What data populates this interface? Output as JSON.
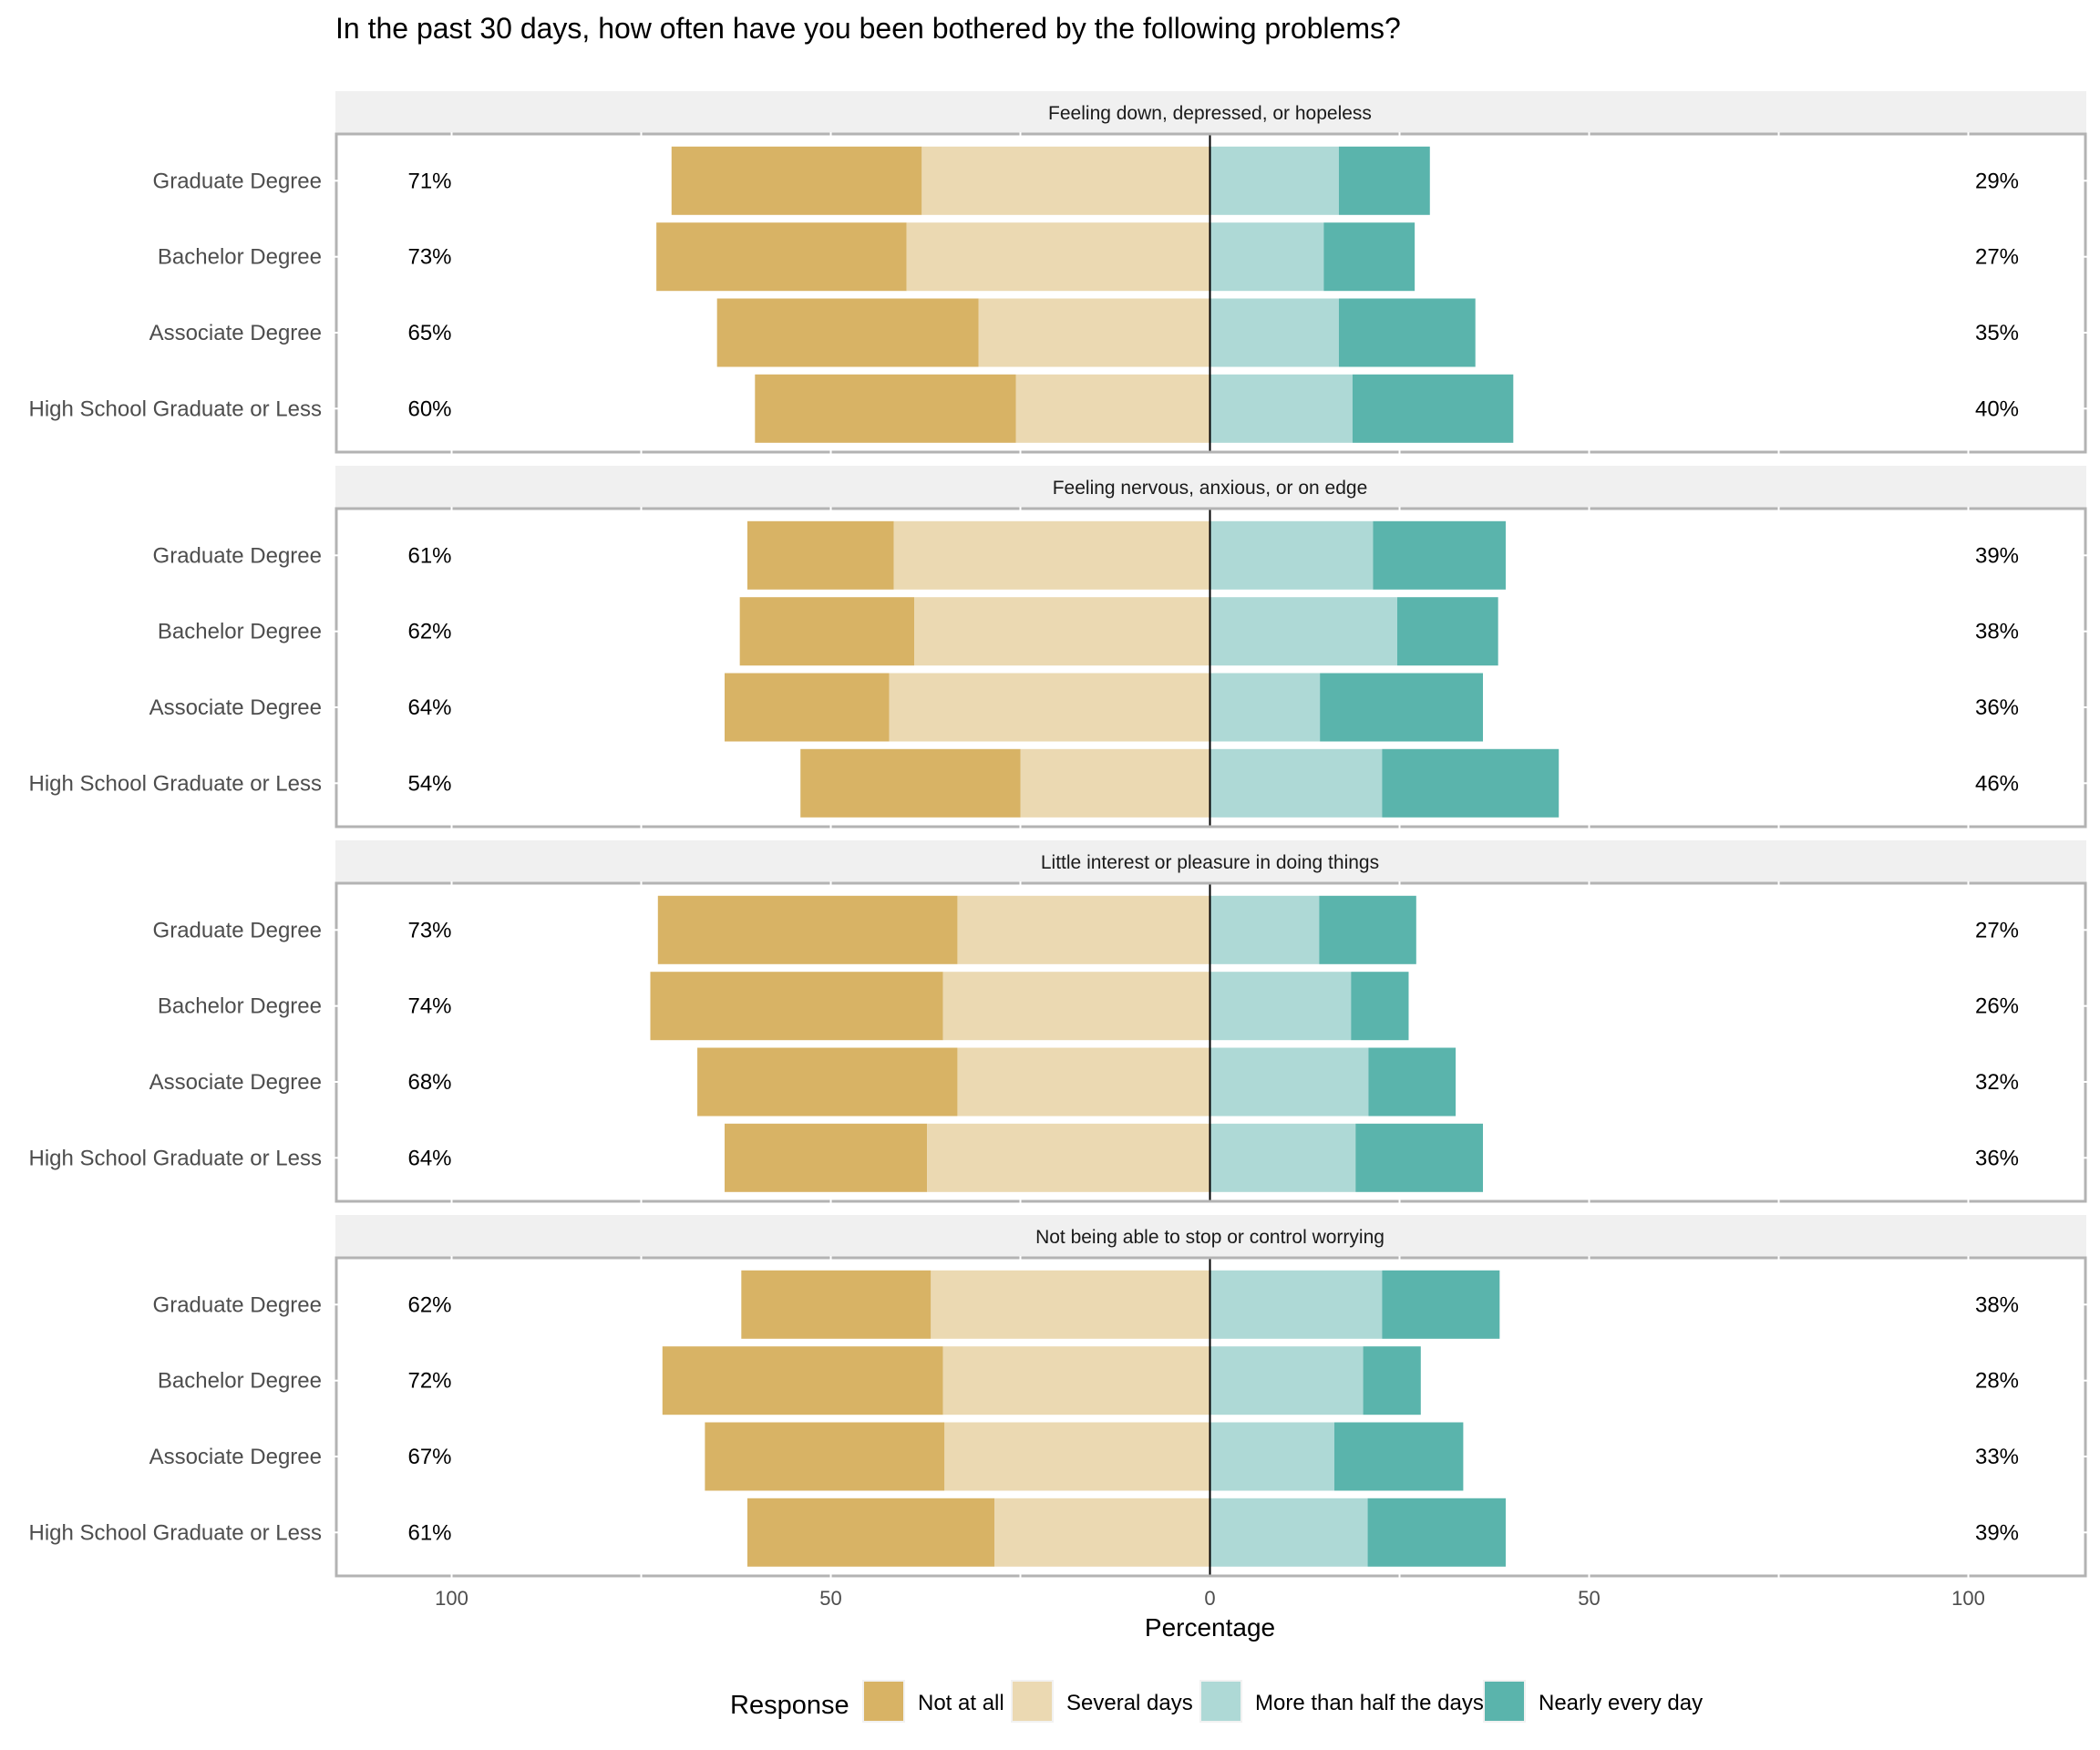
{
  "chart_data": {
    "type": "bar",
    "subtype": "diverging-stacked-horizontal",
    "title": "In the past 30 days, how often have you been bothered by the following problems?",
    "xlabel": "Percentage",
    "ylabel": "",
    "xlim": [
      -115,
      115
    ],
    "x_ticks": [
      -100,
      -50,
      0,
      50,
      100
    ],
    "x_tick_labels": [
      "100",
      "50",
      "0",
      "50",
      "100"
    ],
    "grid": true,
    "legend": {
      "title": "Response",
      "position": "bottom",
      "entries": [
        "Not at all",
        "Several days",
        "More than half the days",
        "Nearly every day"
      ]
    },
    "colors": {
      "Not at all": "#d8b365",
      "Several days": "#ebd9b2",
      "More than half the days": "#aed9d6",
      "Nearly every day": "#5ab4ac"
    },
    "negative_side": [
      "Not at all",
      "Several days"
    ],
    "positive_side": [
      "More than half the days",
      "Nearly every day"
    ],
    "categories": [
      "Graduate Degree",
      "Bachelor Degree",
      "Associate Degree",
      "High School Graduate or Less"
    ],
    "panels": [
      {
        "title": "Feeling down, depressed, or hopeless",
        "rows": [
          {
            "category": "Graduate Degree",
            "Not at all": 33.0,
            "Several days": 38.0,
            "More than half the days": 17.0,
            "Nearly every day": 12.0,
            "left_label": "71%",
            "right_label": "29%"
          },
          {
            "category": "Bachelor Degree",
            "Not at all": 33.0,
            "Several days": 40.0,
            "More than half the days": 15.0,
            "Nearly every day": 12.0,
            "left_label": "73%",
            "right_label": "27%"
          },
          {
            "category": "Associate Degree",
            "Not at all": 34.5,
            "Several days": 30.5,
            "More than half the days": 17.0,
            "Nearly every day": 18.0,
            "left_label": "65%",
            "right_label": "35%"
          },
          {
            "category": "High School Graduate or Less",
            "Not at all": 34.4,
            "Several days": 25.6,
            "More than half the days": 18.8,
            "Nearly every day": 21.2,
            "left_label": "60%",
            "right_label": "40%"
          }
        ]
      },
      {
        "title": "Feeling nervous, anxious, or on edge",
        "rows": [
          {
            "category": "Graduate Degree",
            "Not at all": 19.3,
            "Several days": 41.7,
            "More than half the days": 21.5,
            "Nearly every day": 17.5,
            "left_label": "61%",
            "right_label": "39%"
          },
          {
            "category": "Bachelor Degree",
            "Not at all": 23.0,
            "Several days": 39.0,
            "More than half the days": 24.7,
            "Nearly every day": 13.3,
            "left_label": "62%",
            "right_label": "38%"
          },
          {
            "category": "Associate Degree",
            "Not at all": 21.7,
            "Several days": 42.3,
            "More than half the days": 14.5,
            "Nearly every day": 21.5,
            "left_label": "64%",
            "right_label": "36%"
          },
          {
            "category": "High School Graduate or Less",
            "Not at all": 29.0,
            "Several days": 25.0,
            "More than half the days": 22.7,
            "Nearly every day": 23.3,
            "left_label": "54%",
            "right_label": "46%"
          }
        ]
      },
      {
        "title": "Little interest or pleasure in doing things",
        "rows": [
          {
            "category": "Graduate Degree",
            "Not at all": 39.5,
            "Several days": 33.3,
            "More than half the days": 14.4,
            "Nearly every day": 12.8,
            "left_label": "73%",
            "right_label": "27%"
          },
          {
            "category": "Bachelor Degree",
            "Not at all": 38.6,
            "Several days": 35.2,
            "More than half the days": 18.6,
            "Nearly every day": 7.6,
            "left_label": "74%",
            "right_label": "26%"
          },
          {
            "category": "Associate Degree",
            "Not at all": 34.3,
            "Several days": 33.3,
            "More than half the days": 20.9,
            "Nearly every day": 11.5,
            "left_label": "68%",
            "right_label": "32%"
          },
          {
            "category": "High School Graduate or Less",
            "Not at all": 26.7,
            "Several days": 37.3,
            "More than half the days": 19.2,
            "Nearly every day": 16.8,
            "left_label": "64%",
            "right_label": "36%"
          }
        ]
      },
      {
        "title": "Not being able to stop or control worrying",
        "rows": [
          {
            "category": "Graduate Degree",
            "Not at all": 25.0,
            "Several days": 36.8,
            "More than half the days": 22.7,
            "Nearly every day": 15.5,
            "left_label": "62%",
            "right_label": "38%"
          },
          {
            "category": "Bachelor Degree",
            "Not at all": 37.0,
            "Several days": 35.2,
            "More than half the days": 20.2,
            "Nearly every day": 7.6,
            "left_label": "72%",
            "right_label": "28%"
          },
          {
            "category": "Associate Degree",
            "Not at all": 31.6,
            "Several days": 35.0,
            "More than half the days": 16.4,
            "Nearly every day": 17.0,
            "left_label": "67%",
            "right_label": "33%"
          },
          {
            "category": "High School Graduate or Less",
            "Not at all": 32.6,
            "Several days": 28.4,
            "More than half the days": 20.8,
            "Nearly every day": 18.2,
            "left_label": "61%",
            "right_label": "39%"
          }
        ]
      }
    ]
  }
}
